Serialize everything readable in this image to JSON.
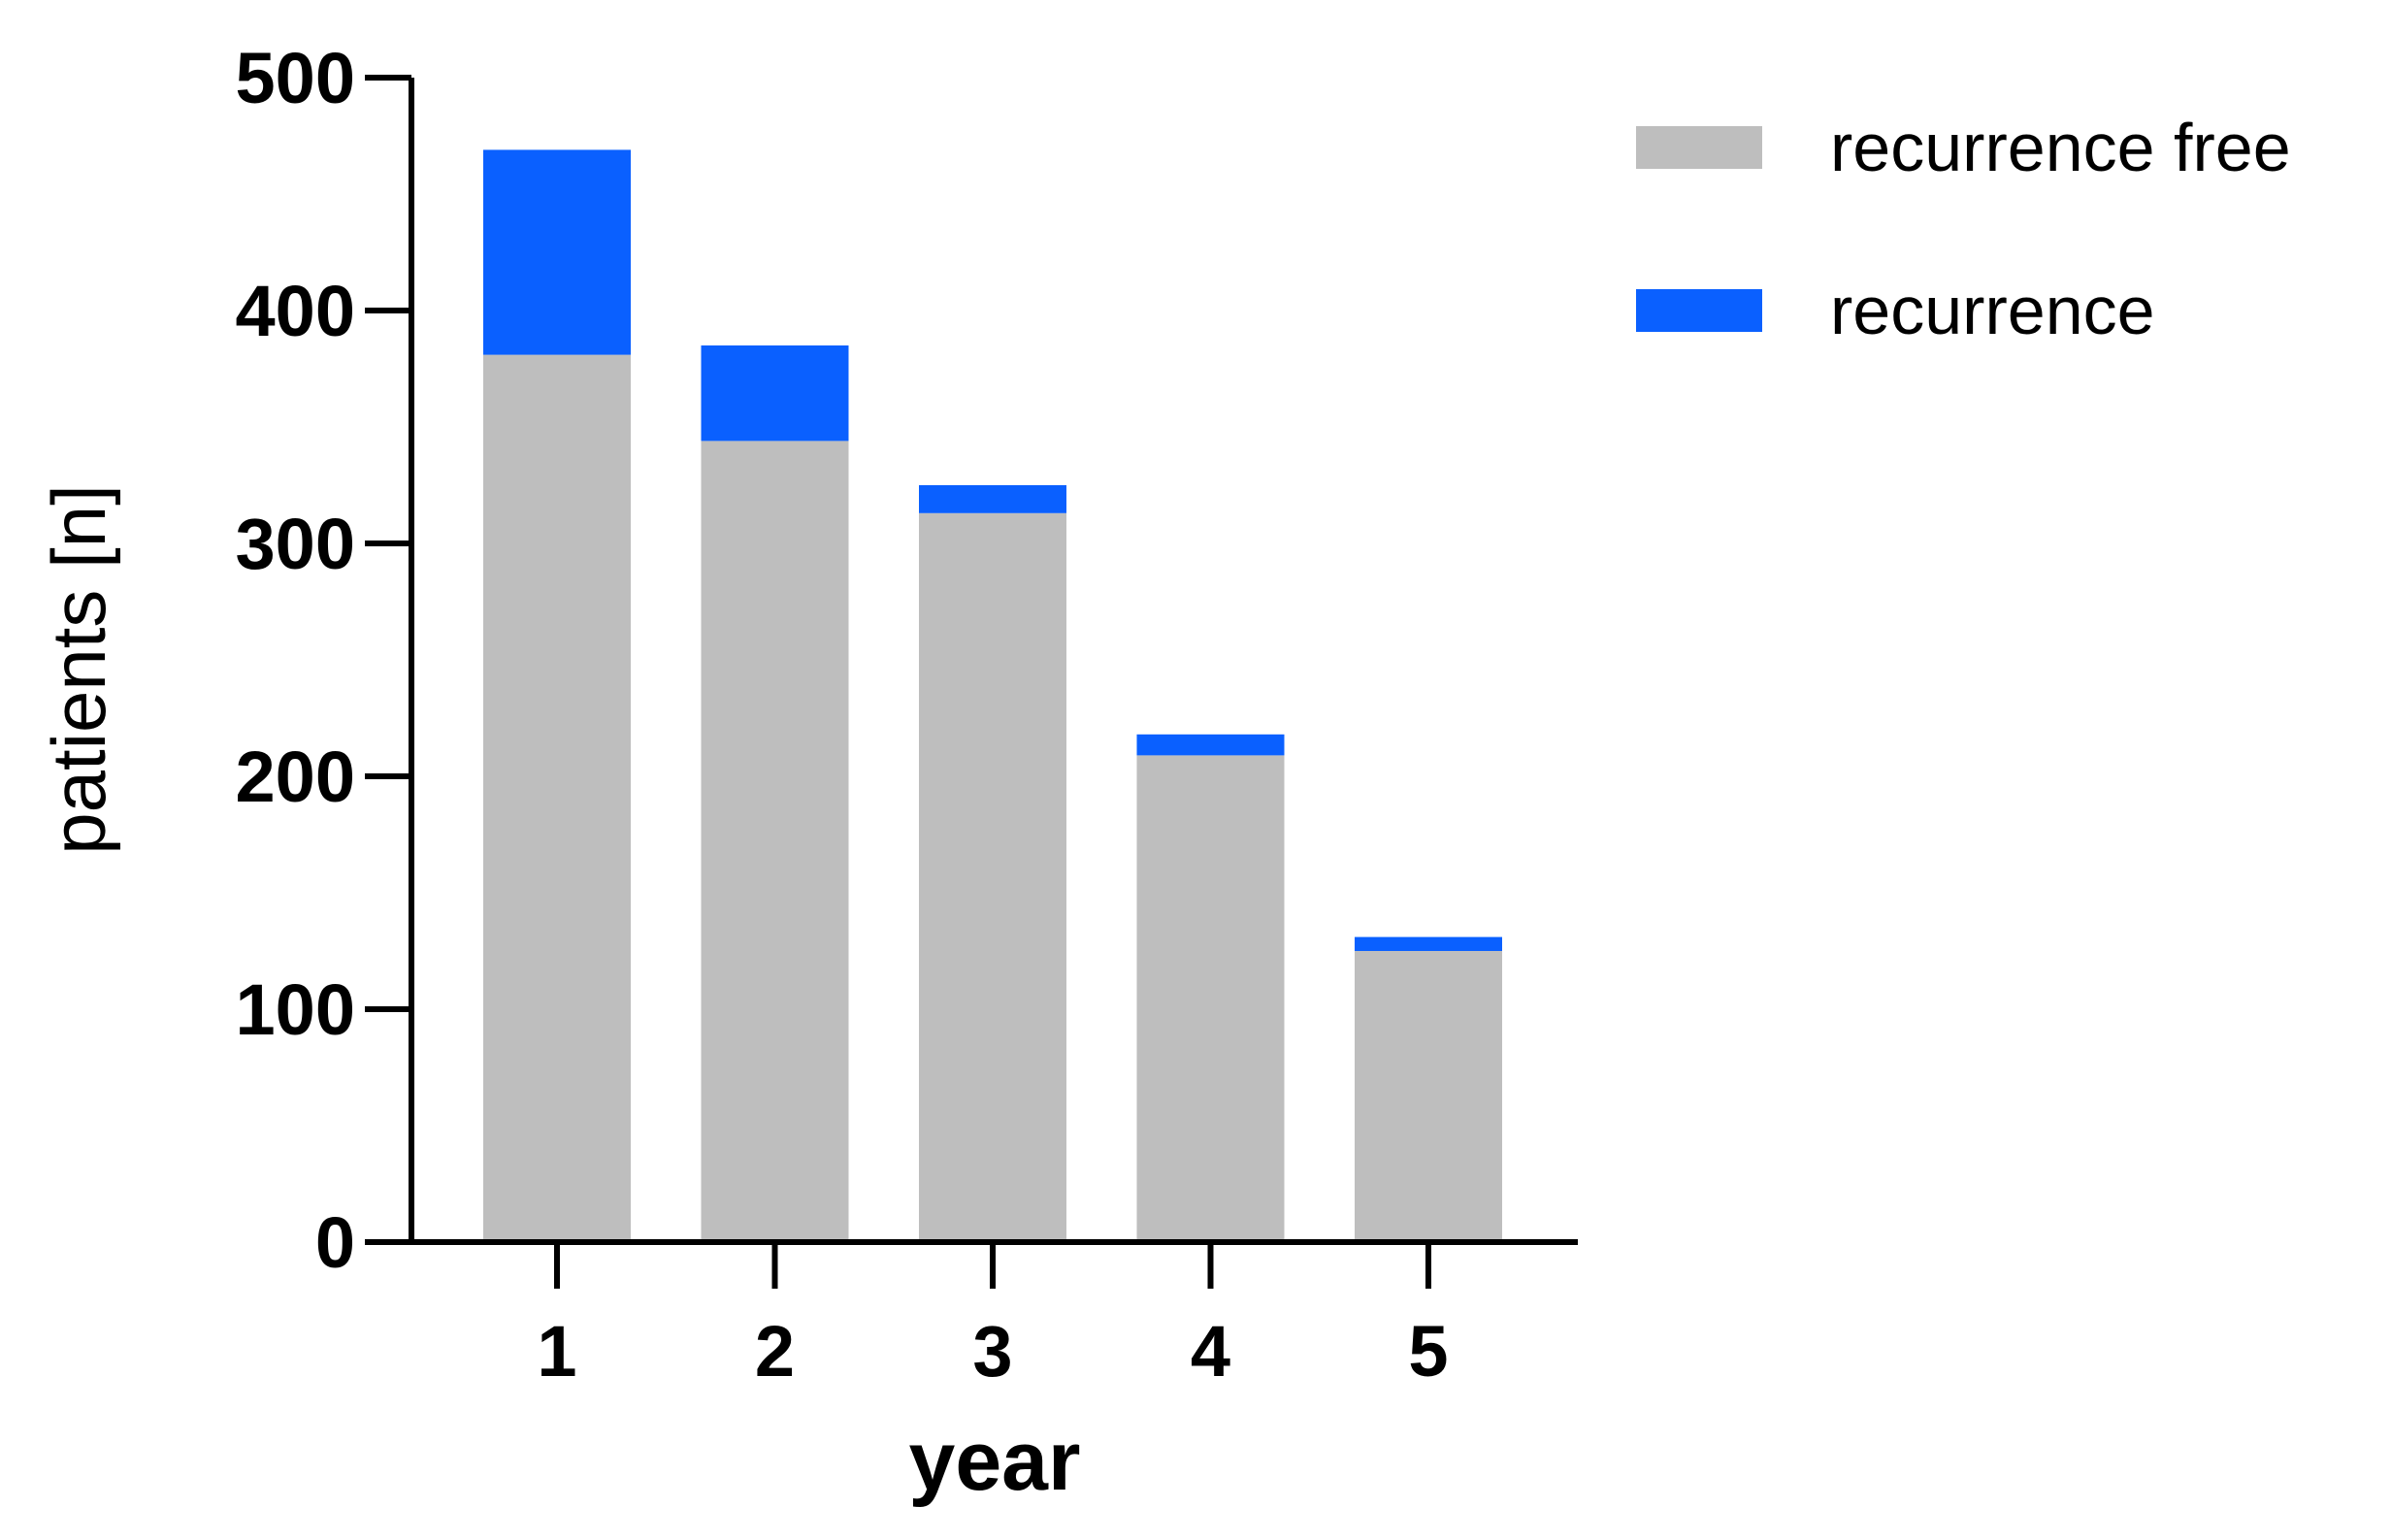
{
  "chart_data": {
    "type": "bar",
    "stacked": true,
    "title": "",
    "xlabel": "year",
    "ylabel": "patients [n]",
    "categories": [
      "1",
      "2",
      "3",
      "4",
      "5"
    ],
    "series": [
      {
        "name": "recurrence free",
        "color": "#bebebe",
        "values": [
          381,
          344,
          313,
          209,
          125
        ]
      },
      {
        "name": "recurrence",
        "color": "#0a60ff",
        "values": [
          88,
          41,
          12,
          9,
          6
        ]
      }
    ],
    "ylim": [
      0,
      500
    ],
    "yticks": [
      "0",
      "100",
      "200",
      "300",
      "400",
      "500"
    ],
    "grid": false,
    "legend_position": "top-right"
  }
}
